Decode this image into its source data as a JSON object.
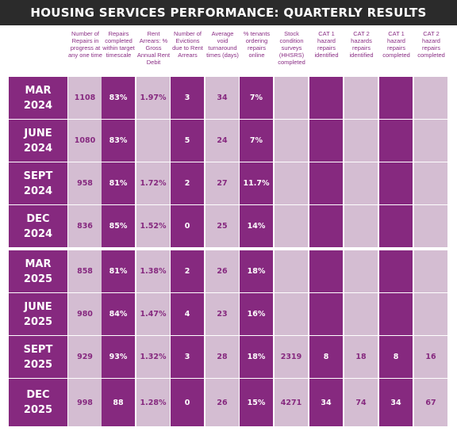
{
  "title": "HOUSING SERVICES PERFORMANCE: QUARTERLY RESULTS",
  "columns": [
    "Number of Repairs in progress at any one time",
    "Repairs completed within target timescale",
    "Rent Arrears: % Gross Annual Rent Debit",
    "Number of Evictions due to Rent Arrears",
    "Average void turnaround times (days)",
    "% tenants ordering repairs online",
    "Stock condition surveys (HHSRS) completed",
    "CAT 1 hazard repairs identified",
    "CAT 2 hazards repairs identified",
    "CAT 1 hazard repairs completed",
    "CAT 2 hazard repairs completed"
  ],
  "rows": [
    {
      "month": "MAR",
      "year": "2024",
      "values": [
        "1108",
        "83%",
        "1.97%",
        "3",
        "34",
        "7%",
        "",
        "",
        "",
        "",
        ""
      ]
    },
    {
      "month": "JUNE",
      "year": "2024",
      "values": [
        "1080",
        "83%",
        "",
        "5",
        "24",
        "7%",
        "",
        "",
        "",
        "",
        ""
      ]
    },
    {
      "month": "SEPT",
      "year": "2024",
      "values": [
        "958",
        "81%",
        "1.72%",
        "2",
        "27",
        "11.7%",
        "",
        "",
        "",
        "",
        ""
      ]
    },
    {
      "month": "DEC",
      "year": "2024",
      "values": [
        "836",
        "85%",
        "1.52%",
        "0",
        "25",
        "14%",
        "",
        "",
        "",
        "",
        ""
      ]
    },
    {
      "month": "MAR",
      "year": "2025",
      "values": [
        "858",
        "81%",
        "1.38%",
        "2",
        "26",
        "18%",
        "",
        "",
        "",
        "",
        ""
      ]
    },
    {
      "month": "JUNE",
      "year": "2025",
      "values": [
        "980",
        "84%",
        "1.47%",
        "4",
        "23",
        "16%",
        "",
        "",
        "",
        "",
        ""
      ]
    },
    {
      "month": "SEPT",
      "year": "2025",
      "values": [
        "929",
        "93%",
        "1.32%",
        "3",
        "28",
        "18%",
        "2319",
        "8",
        "18",
        "8",
        "16"
      ]
    },
    {
      "month": "DEC",
      "year": "2025",
      "values": [
        "998",
        "88",
        "1.28%",
        "0",
        "26",
        "15%",
        "4271",
        "34",
        "74",
        "34",
        "67"
      ]
    }
  ],
  "colors": {
    "dark": "#86297f",
    "light": "#d4bdd2",
    "title_bg": "#2b2b2b"
  }
}
